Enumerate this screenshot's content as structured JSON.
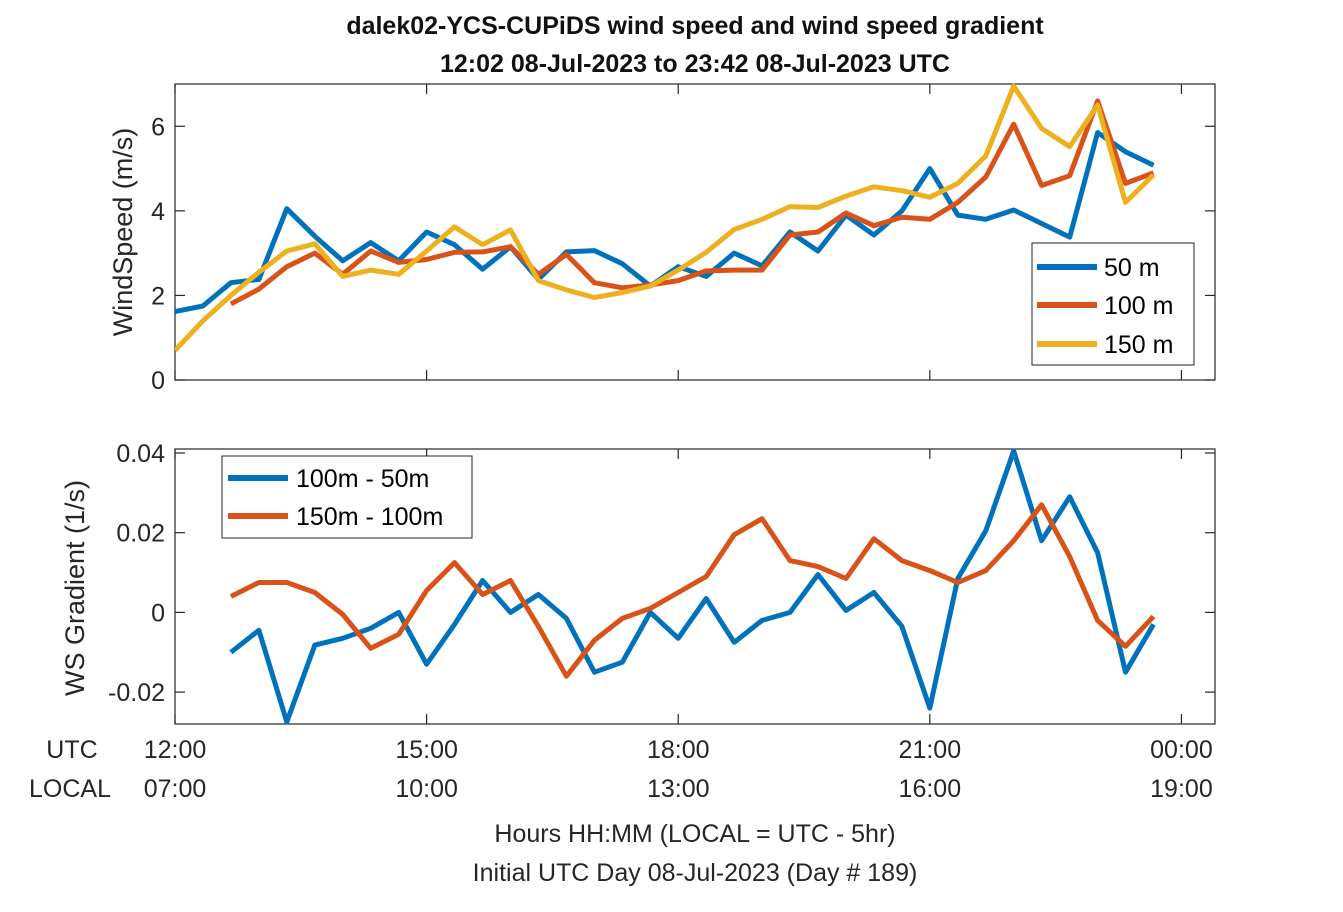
{
  "title": {
    "line1": "dalek02-YCS-CUPiDS  wind speed and wind speed gradient",
    "line2": "12:02 08-Jul-2023 to 23:42 08-Jul-2023  UTC"
  },
  "xaxis": {
    "utc_label": "UTC",
    "local_label": "LOCAL",
    "utc_ticks": [
      "12:00",
      "15:00",
      "18:00",
      "21:00",
      "00:00"
    ],
    "local_ticks": [
      "07:00",
      "10:00",
      "13:00",
      "16:00",
      "19:00"
    ],
    "label_line1": "Hours HH:MM  (LOCAL = UTC - 5hr)",
    "label_line2": "Initial UTC Day 08-Jul-2023 (Day # 189)"
  },
  "colors": {
    "blue": "#0072BD",
    "orange": "#D95319",
    "yellow": "#EDB120"
  },
  "chart_data": [
    {
      "type": "line",
      "ylabel": "WindSpeed (m/s)",
      "xlim": [
        12,
        24.4
      ],
      "ylim": [
        0,
        7
      ],
      "yticks": [
        0,
        2,
        4,
        6
      ],
      "legend_position": "right",
      "series": [
        {
          "name": "50 m",
          "color": "#0072BD",
          "x": [
            12.0,
            12.333,
            12.667,
            13.0,
            13.333,
            13.667,
            14.0,
            14.333,
            14.667,
            15.0,
            15.333,
            15.667,
            16.0,
            16.333,
            16.667,
            17.0,
            17.333,
            17.667,
            18.0,
            18.333,
            18.667,
            19.0,
            19.333,
            19.667,
            20.0,
            20.333,
            20.667,
            21.0,
            21.333,
            21.667,
            22.0,
            22.333,
            22.667,
            23.0,
            23.333,
            23.667
          ],
          "values": [
            1.62,
            1.75,
            2.3,
            2.38,
            4.05,
            3.4,
            2.82,
            3.25,
            2.82,
            3.5,
            3.2,
            2.62,
            3.15,
            2.38,
            3.03,
            3.06,
            2.75,
            2.22,
            2.68,
            2.45,
            3.0,
            2.7,
            3.5,
            3.05,
            3.9,
            3.43,
            4.0,
            5.0,
            3.9,
            3.8,
            4.02,
            3.7,
            3.38,
            5.85,
            5.4,
            5.08
          ]
        },
        {
          "name": "100 m",
          "color": "#D95319",
          "x": [
            12.667,
            13.0,
            13.333,
            13.667,
            14.0,
            14.333,
            14.667,
            15.0,
            15.333,
            15.667,
            16.0,
            16.333,
            16.667,
            17.0,
            17.333,
            17.667,
            18.0,
            18.333,
            18.667,
            19.0,
            19.333,
            19.667,
            20.0,
            20.333,
            20.667,
            21.0,
            21.333,
            21.667,
            22.0,
            22.333,
            22.667,
            23.0,
            23.333,
            23.667
          ],
          "values": [
            1.8,
            2.15,
            2.68,
            3.0,
            2.5,
            3.05,
            2.78,
            2.85,
            3.02,
            3.03,
            3.15,
            2.5,
            2.97,
            2.3,
            2.18,
            2.25,
            2.35,
            2.58,
            2.6,
            2.6,
            3.43,
            3.5,
            3.95,
            3.65,
            3.85,
            3.8,
            4.2,
            4.8,
            6.05,
            4.6,
            4.83,
            6.6,
            4.65,
            4.9
          ]
        },
        {
          "name": "150 m",
          "color": "#EDB120",
          "x": [
            12.0,
            12.333,
            12.667,
            13.0,
            13.333,
            13.667,
            14.0,
            14.333,
            14.667,
            15.0,
            15.333,
            15.667,
            16.0,
            16.333,
            16.667,
            17.0,
            17.333,
            17.667,
            18.0,
            18.333,
            18.667,
            19.0,
            19.333,
            19.667,
            20.0,
            20.333,
            20.667,
            21.0,
            21.333,
            21.667,
            22.0,
            22.333,
            22.667,
            23.0,
            23.333,
            23.667
          ],
          "values": [
            0.7,
            1.4,
            2.0,
            2.55,
            3.05,
            3.22,
            2.45,
            2.6,
            2.5,
            3.05,
            3.62,
            3.2,
            3.55,
            2.35,
            2.13,
            1.95,
            2.07,
            2.22,
            2.6,
            3.02,
            3.56,
            3.8,
            4.1,
            4.08,
            4.35,
            4.57,
            4.48,
            4.32,
            4.65,
            5.3,
            6.95,
            5.95,
            5.52,
            6.5,
            4.2,
            4.85
          ]
        }
      ]
    },
    {
      "type": "line",
      "ylabel": "WS Gradient (1/s)",
      "xlim": [
        12,
        24.4
      ],
      "ylim": [
        -0.028,
        0.041
      ],
      "yticks": [
        -0.02,
        0,
        0.02,
        0.04
      ],
      "ytick_labels": [
        "-0.02",
        "0",
        "0.02",
        "0.04"
      ],
      "legend_position": "top-left",
      "series": [
        {
          "name": "100m - 50m",
          "color": "#0072BD",
          "x": [
            12.667,
            13.0,
            13.333,
            13.667,
            14.0,
            14.333,
            14.667,
            15.0,
            15.333,
            15.667,
            16.0,
            16.333,
            16.667,
            17.0,
            17.333,
            17.667,
            18.0,
            18.333,
            18.667,
            19.0,
            19.333,
            19.667,
            20.0,
            20.333,
            20.667,
            21.0,
            21.333,
            21.667,
            22.0,
            22.333,
            22.667,
            23.0,
            23.333,
            23.667
          ],
          "values": [
            -0.01,
            -0.0045,
            -0.0275,
            -0.0082,
            -0.0065,
            -0.004,
            0.0,
            -0.013,
            -0.003,
            0.008,
            0.0,
            0.0045,
            -0.0015,
            -0.015,
            -0.0125,
            0.0,
            -0.0065,
            0.0035,
            -0.0075,
            -0.002,
            0.0,
            0.0095,
            0.0005,
            0.005,
            -0.0035,
            -0.024,
            0.0085,
            0.0205,
            0.0405,
            0.018,
            0.029,
            0.015,
            -0.015,
            -0.003
          ]
        },
        {
          "name": "150m - 100m",
          "color": "#D95319",
          "x": [
            12.667,
            13.0,
            13.333,
            13.667,
            14.0,
            14.333,
            14.667,
            15.0,
            15.333,
            15.667,
            16.0,
            16.333,
            16.667,
            17.0,
            17.333,
            17.667,
            18.0,
            18.333,
            18.667,
            19.0,
            19.333,
            19.667,
            20.0,
            20.333,
            20.667,
            21.0,
            21.333,
            21.667,
            22.0,
            22.333,
            22.667,
            23.0,
            23.333,
            23.667
          ],
          "values": [
            0.004,
            0.0075,
            0.0075,
            0.005,
            -0.0005,
            -0.009,
            -0.0055,
            0.0055,
            0.0125,
            0.0045,
            0.008,
            -0.0035,
            -0.016,
            -0.007,
            -0.0015,
            0.001,
            0.005,
            0.009,
            0.0195,
            0.0235,
            0.013,
            0.0115,
            0.0085,
            0.0185,
            0.013,
            0.0105,
            0.0075,
            0.0105,
            0.018,
            0.027,
            0.014,
            -0.002,
            -0.0085,
            -0.001
          ]
        }
      ]
    }
  ]
}
